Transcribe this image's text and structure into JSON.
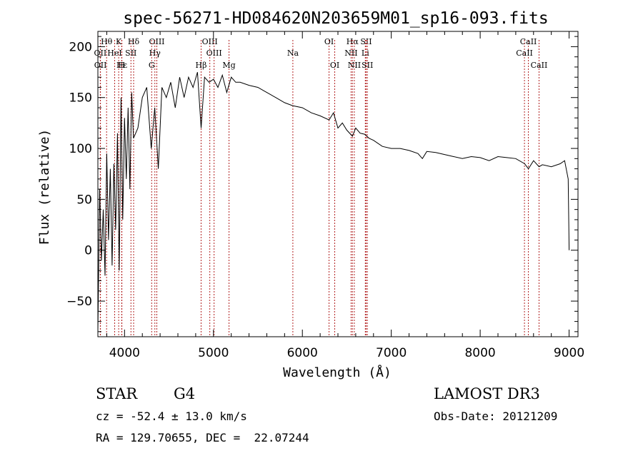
{
  "chart_data": {
    "type": "line",
    "title": "spec-56271-HD084620N203659M01_sp16-093.fits",
    "xlabel": "Wavelength (Å)",
    "ylabel": "Flux (relative)",
    "xlim": [
      3700,
      9100
    ],
    "ylim": [
      -85,
      215
    ],
    "xticks": [
      4000,
      5000,
      6000,
      7000,
      8000,
      9000
    ],
    "yticks": [
      -50,
      0,
      50,
      100,
      150,
      200
    ],
    "series": [
      {
        "name": "flux",
        "x": [
          3700,
          3720,
          3740,
          3760,
          3780,
          3800,
          3820,
          3840,
          3860,
          3880,
          3900,
          3920,
          3940,
          3960,
          3980,
          4000,
          4020,
          4040,
          4060,
          4080,
          4100,
          4150,
          4200,
          4250,
          4300,
          4340,
          4380,
          4420,
          4470,
          4520,
          4570,
          4620,
          4670,
          4720,
          4770,
          4820,
          4861,
          4900,
          4950,
          5000,
          5050,
          5100,
          5150,
          5200,
          5250,
          5300,
          5400,
          5500,
          5600,
          5700,
          5800,
          5890,
          6000,
          6100,
          6200,
          6300,
          6350,
          6400,
          6450,
          6500,
          6563,
          6600,
          6650,
          6700,
          6750,
          6800,
          6900,
          7000,
          7100,
          7200,
          7300,
          7350,
          7400,
          7500,
          7600,
          7700,
          7800,
          7900,
          8000,
          8100,
          8200,
          8300,
          8400,
          8500,
          8542,
          8600,
          8662,
          8700,
          8800,
          8900,
          8950,
          8990,
          9000
        ],
        "y": [
          -80,
          60,
          -10,
          40,
          -25,
          95,
          10,
          80,
          -15,
          85,
          20,
          115,
          -20,
          150,
          30,
          130,
          70,
          140,
          60,
          155,
          110,
          120,
          150,
          160,
          100,
          140,
          80,
          160,
          150,
          165,
          140,
          170,
          150,
          170,
          160,
          175,
          120,
          170,
          165,
          168,
          160,
          172,
          155,
          170,
          165,
          165,
          162,
          160,
          155,
          150,
          145,
          142,
          140,
          135,
          132,
          128,
          135,
          120,
          125,
          118,
          112,
          120,
          115,
          114,
          110,
          108,
          102,
          100,
          100,
          98,
          95,
          90,
          97,
          96,
          94,
          92,
          90,
          92,
          91,
          88,
          92,
          91,
          90,
          85,
          80,
          88,
          82,
          84,
          82,
          85,
          88,
          70,
          0
        ]
      }
    ],
    "emission_lines": [
      {
        "name": "Hθ",
        "x": 3798,
        "row": 0
      },
      {
        "name": "OII",
        "x": 3727,
        "row": 1
      },
      {
        "name": "OII",
        "x": 3729,
        "row": 2
      },
      {
        "name": "K",
        "x": 3934,
        "row": 0
      },
      {
        "name": "Hε",
        "x": 3970,
        "row": 2
      },
      {
        "name": "H",
        "x": 3968,
        "row": 2
      },
      {
        "name": "HeI",
        "x": 3889,
        "row": 1
      },
      {
        "name": "SII",
        "x": 4072,
        "row": 1
      },
      {
        "name": "Hδ",
        "x": 4102,
        "row": 0
      },
      {
        "name": "OIII",
        "x": 4363,
        "row": 0
      },
      {
        "name": "Hγ",
        "x": 4341,
        "row": 1
      },
      {
        "name": "G",
        "x": 4305,
        "row": 2
      },
      {
        "name": "OIII",
        "x": 4959,
        "row": 0
      },
      {
        "name": "OIII",
        "x": 5007,
        "row": 1
      },
      {
        "name": "Hβ",
        "x": 4861,
        "row": 2
      },
      {
        "name": "Mg",
        "x": 5175,
        "row": 2
      },
      {
        "name": "Na",
        "x": 5893,
        "row": 1
      },
      {
        "name": "OI",
        "x": 6300,
        "row": 0
      },
      {
        "name": "OI",
        "x": 6364,
        "row": 2
      },
      {
        "name": "Hα",
        "x": 6563,
        "row": 0
      },
      {
        "name": "NII",
        "x": 6548,
        "row": 1
      },
      {
        "name": "NII",
        "x": 6584,
        "row": 2
      },
      {
        "name": "SII",
        "x": 6717,
        "row": 0
      },
      {
        "name": "Li",
        "x": 6708,
        "row": 1
      },
      {
        "name": "SII",
        "x": 6731,
        "row": 2
      },
      {
        "name": "CaII",
        "x": 8542,
        "row": 0
      },
      {
        "name": "CaII",
        "x": 8498,
        "row": 1
      },
      {
        "name": "CaII",
        "x": 8662,
        "row": 2
      }
    ]
  },
  "info": {
    "object_class": "STAR",
    "subclass": "G4",
    "survey": "LAMOST DR3",
    "redshift": "cz = -52.4 ± 13.0 km/s",
    "obs_date": "Obs-Date: 20121209",
    "coords": "RA = 129.70655, DEC =  22.07244"
  },
  "colors": {
    "line": "#000000",
    "marker": "#b22222"
  }
}
